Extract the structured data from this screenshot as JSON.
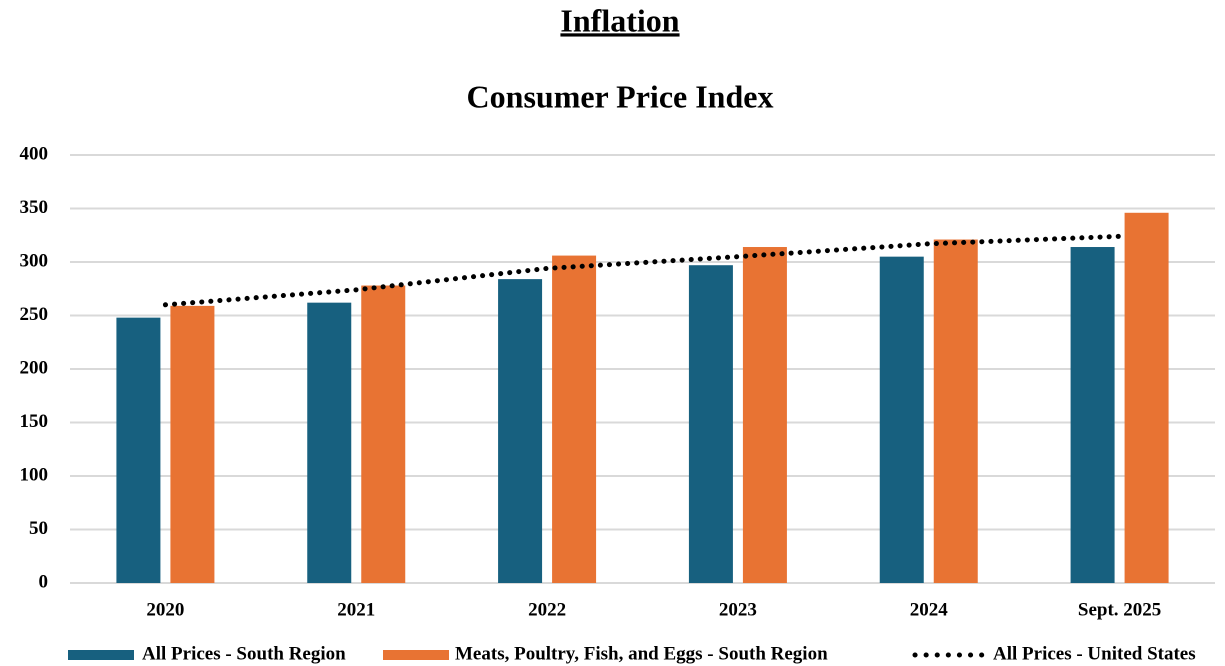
{
  "heading": "Inflation",
  "chart_data": {
    "type": "bar",
    "title": "Consumer Price Index",
    "categories": [
      "2020",
      "2021",
      "2022",
      "2023",
      "2024",
      "Sept. 2025"
    ],
    "series": [
      {
        "name": "All Prices - South Region",
        "color": "#17607f",
        "type": "bar",
        "values": [
          248,
          262,
          284,
          297,
          305,
          314
        ]
      },
      {
        "name": "Meats, Poultry, Fish, and Eggs - South Region",
        "color": "#e87333",
        "type": "bar",
        "values": [
          259,
          278,
          306,
          314,
          321,
          346
        ]
      },
      {
        "name": "All Prices - United States",
        "color": "#000000",
        "type": "line",
        "values": [
          260,
          274,
          294,
          305,
          317,
          324
        ]
      }
    ],
    "ylim": [
      0,
      400
    ],
    "yticks": [
      0,
      50,
      100,
      150,
      200,
      250,
      300,
      350,
      400
    ],
    "grid": true,
    "legend": "bottom"
  }
}
